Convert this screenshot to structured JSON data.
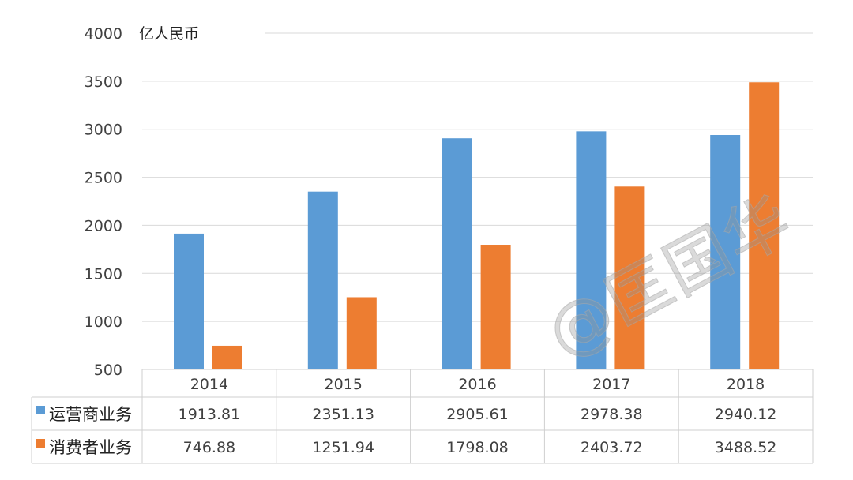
{
  "chart_data": {
    "type": "bar",
    "unit_label": "亿人民币",
    "categories": [
      "2014",
      "2015",
      "2016",
      "2017",
      "2018"
    ],
    "series": [
      {
        "name": "运营商业务",
        "color": "#5b9bd5",
        "values": [
          1913.81,
          2351.13,
          2905.61,
          2978.38,
          2940.12
        ]
      },
      {
        "name": "消费者业务",
        "color": "#ed7d31",
        "values": [
          746.88,
          1251.94,
          1798.08,
          2403.72,
          3488.52
        ]
      }
    ],
    "value_labels": [
      [
        "1913.81",
        "2351.13",
        "2905.61",
        "2978.38",
        "2940.12"
      ],
      [
        "746.88",
        "1251.94",
        "1798.08",
        "2403.72",
        "3488.52"
      ]
    ],
    "y_ticks": [
      "500",
      "1000",
      "1500",
      "2000",
      "2500",
      "3000",
      "3500",
      "4000"
    ],
    "ylim": [
      500,
      4000
    ],
    "grid": true,
    "legend_placement": "data-table-left"
  },
  "watermark": "@匡国华"
}
